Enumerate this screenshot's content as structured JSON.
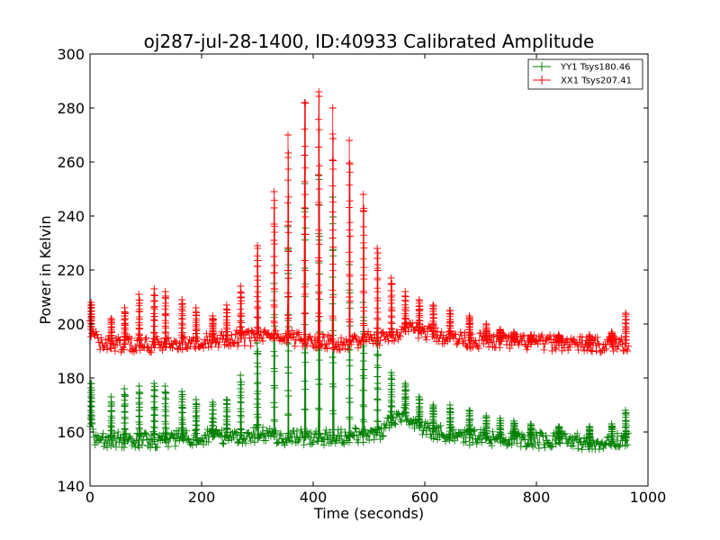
{
  "chart_data": {
    "type": "line",
    "title": "oj287-jul-28-1400, ID:40933 Calibrated Amplitude",
    "xlabel": "Time (seconds)",
    "ylabel": "Power in Kelvin",
    "xlim": [
      0,
      1000
    ],
    "ylim": [
      140,
      300
    ],
    "xticks": [
      "0",
      "200",
      "400",
      "600",
      "800",
      "1000"
    ],
    "yticks": [
      "140",
      "160",
      "180",
      "200",
      "220",
      "240",
      "260",
      "280",
      "300"
    ],
    "grid": false,
    "legend_position": "top-right",
    "marker": "+",
    "series": [
      {
        "name": "YY1 Tsys180.46",
        "color": "#008000",
        "baseline": [
          [
            0,
            165
          ],
          [
            8,
            157
          ],
          [
            20,
            157
          ],
          [
            100,
            157
          ],
          [
            200,
            158
          ],
          [
            300,
            159
          ],
          [
            340,
            158
          ],
          [
            400,
            158
          ],
          [
            450,
            158
          ],
          [
            520,
            160
          ],
          [
            560,
            167
          ],
          [
            580,
            163
          ],
          [
            620,
            160
          ],
          [
            680,
            158
          ],
          [
            800,
            157
          ],
          [
            850,
            157
          ],
          [
            900,
            156
          ],
          [
            965,
            157
          ]
        ],
        "spikes": [
          [
            2,
            178
          ],
          [
            38,
            173
          ],
          [
            62,
            176
          ],
          [
            88,
            177
          ],
          [
            115,
            178
          ],
          [
            135,
            177
          ],
          [
            165,
            175
          ],
          [
            190,
            172
          ],
          [
            220,
            171
          ],
          [
            245,
            172
          ],
          [
            270,
            181
          ],
          [
            300,
            193
          ],
          [
            330,
            215
          ],
          [
            355,
            236
          ],
          [
            385,
            252
          ],
          [
            410,
            255
          ],
          [
            435,
            247
          ],
          [
            465,
            222
          ],
          [
            490,
            208
          ],
          [
            515,
            197
          ],
          [
            540,
            182
          ],
          [
            565,
            178
          ],
          [
            590,
            173
          ],
          [
            615,
            170
          ],
          [
            645,
            170
          ],
          [
            680,
            168
          ],
          [
            710,
            166
          ],
          [
            735,
            165
          ],
          [
            760,
            164
          ],
          [
            790,
            163
          ],
          [
            840,
            162
          ],
          [
            895,
            162
          ],
          [
            935,
            163
          ],
          [
            960,
            168
          ]
        ]
      },
      {
        "name": "XX1 Tsys207.41",
        "color": "#ff0000",
        "baseline": [
          [
            0,
            199
          ],
          [
            8,
            195
          ],
          [
            20,
            193
          ],
          [
            100,
            192
          ],
          [
            200,
            194
          ],
          [
            300,
            195
          ],
          [
            340,
            195
          ],
          [
            400,
            194
          ],
          [
            450,
            193
          ],
          [
            520,
            195
          ],
          [
            560,
            197
          ],
          [
            580,
            198
          ],
          [
            620,
            196
          ],
          [
            680,
            194
          ],
          [
            800,
            193
          ],
          [
            850,
            193
          ],
          [
            900,
            192
          ],
          [
            965,
            193
          ]
        ],
        "spikes": [
          [
            2,
            208
          ],
          [
            38,
            202
          ],
          [
            62,
            206
          ],
          [
            88,
            211
          ],
          [
            115,
            213
          ],
          [
            135,
            212
          ],
          [
            165,
            209
          ],
          [
            190,
            206
          ],
          [
            220,
            203
          ],
          [
            245,
            207
          ],
          [
            270,
            214
          ],
          [
            300,
            229
          ],
          [
            330,
            249
          ],
          [
            355,
            270
          ],
          [
            385,
            282
          ],
          [
            410,
            286
          ],
          [
            435,
            280
          ],
          [
            465,
            268
          ],
          [
            490,
            248
          ],
          [
            515,
            228
          ],
          [
            540,
            217
          ],
          [
            565,
            212
          ],
          [
            590,
            209
          ],
          [
            615,
            207
          ],
          [
            645,
            205
          ],
          [
            680,
            203
          ],
          [
            710,
            200
          ],
          [
            735,
            198
          ],
          [
            760,
            197
          ],
          [
            790,
            196
          ],
          [
            840,
            196
          ],
          [
            895,
            196
          ],
          [
            935,
            197
          ],
          [
            960,
            204
          ]
        ]
      }
    ]
  }
}
